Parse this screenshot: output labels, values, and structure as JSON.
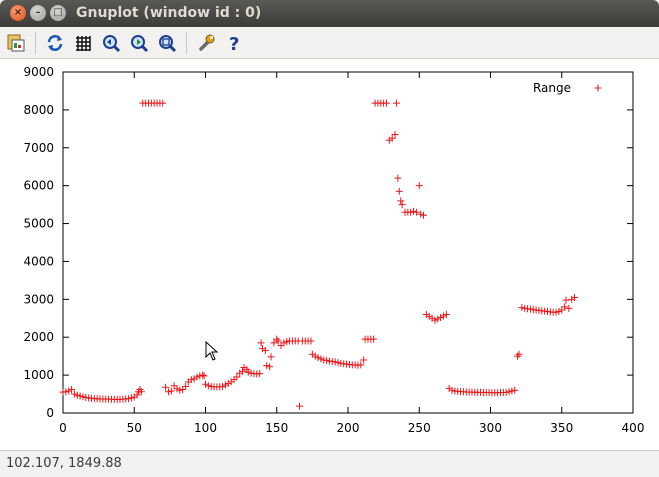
{
  "window": {
    "title": "Gnuplot (window id : 0)",
    "close_glyph": "×",
    "minimize_glyph": "–",
    "maximize_glyph": "□"
  },
  "toolbar": {
    "items": [
      {
        "name": "copy-to-clipboard-icon"
      },
      {
        "name": "replot-icon"
      },
      {
        "name": "grid-icon"
      },
      {
        "name": "zoom-previous-icon"
      },
      {
        "name": "zoom-next-icon"
      },
      {
        "name": "autoscale-icon"
      },
      {
        "name": "options-wrench-icon"
      },
      {
        "name": "help-icon"
      }
    ]
  },
  "status": {
    "coordinates": "102.107,  1849.88"
  },
  "colors": {
    "series": "#e41a1c",
    "titlebar": "#3c3b37",
    "close": "#df4a16"
  },
  "chart_data": {
    "type": "scatter",
    "title": "",
    "xlabel": "",
    "ylabel": "",
    "xlim": [
      0,
      400
    ],
    "ylim": [
      0,
      9000
    ],
    "xticks": [
      0,
      50,
      100,
      150,
      200,
      250,
      300,
      350,
      400
    ],
    "yticks": [
      0,
      1000,
      2000,
      3000,
      4000,
      5000,
      6000,
      7000,
      8000,
      9000
    ],
    "grid": false,
    "legend": "top-right",
    "series": [
      {
        "name": "Range",
        "marker": "+",
        "points": [
          [
            0,
            550
          ],
          [
            2,
            560
          ],
          [
            4,
            580
          ],
          [
            6,
            620
          ],
          [
            8,
            500
          ],
          [
            10,
            470
          ],
          [
            12,
            450
          ],
          [
            14,
            430
          ],
          [
            16,
            410
          ],
          [
            18,
            400
          ],
          [
            20,
            390
          ],
          [
            22,
            380
          ],
          [
            24,
            375
          ],
          [
            26,
            370
          ],
          [
            28,
            368
          ],
          [
            30,
            365
          ],
          [
            32,
            365
          ],
          [
            34,
            362
          ],
          [
            36,
            360
          ],
          [
            38,
            360
          ],
          [
            40,
            360
          ],
          [
            42,
            365
          ],
          [
            44,
            370
          ],
          [
            46,
            380
          ],
          [
            48,
            400
          ],
          [
            50,
            420
          ],
          [
            52,
            480
          ],
          [
            53,
            560
          ],
          [
            54,
            620
          ],
          [
            55,
            560
          ],
          [
            56,
            8180
          ],
          [
            58,
            8180
          ],
          [
            60,
            8180
          ],
          [
            62,
            8180
          ],
          [
            64,
            8180
          ],
          [
            66,
            8180
          ],
          [
            68,
            8180
          ],
          [
            70,
            8180
          ],
          [
            72,
            680
          ],
          [
            74,
            560
          ],
          [
            76,
            580
          ],
          [
            78,
            720
          ],
          [
            80,
            640
          ],
          [
            82,
            600
          ],
          [
            84,
            620
          ],
          [
            86,
            700
          ],
          [
            88,
            820
          ],
          [
            90,
            880
          ],
          [
            92,
            900
          ],
          [
            94,
            950
          ],
          [
            96,
            980
          ],
          [
            98,
            1000
          ],
          [
            99,
            980
          ],
          [
            100,
            760
          ],
          [
            102,
            720
          ],
          [
            104,
            700
          ],
          [
            106,
            690
          ],
          [
            108,
            690
          ],
          [
            110,
            690
          ],
          [
            112,
            700
          ],
          [
            114,
            740
          ],
          [
            116,
            780
          ],
          [
            118,
            820
          ],
          [
            120,
            880
          ],
          [
            122,
            950
          ],
          [
            124,
            1050
          ],
          [
            126,
            1100
          ],
          [
            127,
            1200
          ],
          [
            129,
            1150
          ],
          [
            130,
            1080
          ],
          [
            132,
            1050
          ],
          [
            134,
            1040
          ],
          [
            136,
            1030
          ],
          [
            138,
            1040
          ],
          [
            139,
            1850
          ],
          [
            140,
            1700
          ],
          [
            142,
            1650
          ],
          [
            143,
            1250
          ],
          [
            145,
            1220
          ],
          [
            146,
            1480
          ],
          [
            148,
            1850
          ],
          [
            150,
            1950
          ],
          [
            151,
            1900
          ],
          [
            153,
            1780
          ],
          [
            155,
            1850
          ],
          [
            157,
            1880
          ],
          [
            159,
            1900
          ],
          [
            161,
            1900
          ],
          [
            163,
            1900
          ],
          [
            165,
            1900
          ],
          [
            166,
            180
          ],
          [
            168,
            1900
          ],
          [
            170,
            1900
          ],
          [
            172,
            1900
          ],
          [
            174,
            1900
          ],
          [
            175,
            1550
          ],
          [
            177,
            1500
          ],
          [
            179,
            1460
          ],
          [
            181,
            1430
          ],
          [
            183,
            1400
          ],
          [
            185,
            1390
          ],
          [
            187,
            1370
          ],
          [
            189,
            1360
          ],
          [
            191,
            1350
          ],
          [
            193,
            1330
          ],
          [
            195,
            1310
          ],
          [
            197,
            1300
          ],
          [
            199,
            1290
          ],
          [
            201,
            1280
          ],
          [
            203,
            1270
          ],
          [
            205,
            1270
          ],
          [
            207,
            1260
          ],
          [
            209,
            1270
          ],
          [
            211,
            1400
          ],
          [
            212,
            1950
          ],
          [
            214,
            1950
          ],
          [
            216,
            1950
          ],
          [
            218,
            1950
          ],
          [
            219,
            8180
          ],
          [
            221,
            8180
          ],
          [
            223,
            8180
          ],
          [
            225,
            8180
          ],
          [
            227,
            8180
          ],
          [
            229,
            7200
          ],
          [
            231,
            7250
          ],
          [
            233,
            7350
          ],
          [
            234,
            8180
          ],
          [
            235,
            6200
          ],
          [
            236,
            5850
          ],
          [
            237,
            5600
          ],
          [
            238,
            5500
          ],
          [
            240,
            5300
          ],
          [
            242,
            5300
          ],
          [
            244,
            5300
          ],
          [
            246,
            5320
          ],
          [
            248,
            5300
          ],
          [
            250,
            6000
          ],
          [
            251,
            5250
          ],
          [
            253,
            5220
          ],
          [
            255,
            2600
          ],
          [
            257,
            2550
          ],
          [
            259,
            2500
          ],
          [
            261,
            2450
          ],
          [
            263,
            2480
          ],
          [
            265,
            2520
          ],
          [
            267,
            2560
          ],
          [
            269,
            2600
          ],
          [
            271,
            650
          ],
          [
            273,
            600
          ],
          [
            275,
            580
          ],
          [
            277,
            570
          ],
          [
            279,
            565
          ],
          [
            281,
            560
          ],
          [
            283,
            555
          ],
          [
            285,
            550
          ],
          [
            287,
            550
          ],
          [
            289,
            548
          ],
          [
            291,
            545
          ],
          [
            293,
            545
          ],
          [
            295,
            540
          ],
          [
            297,
            540
          ],
          [
            299,
            540
          ],
          [
            301,
            535
          ],
          [
            303,
            535
          ],
          [
            305,
            535
          ],
          [
            307,
            540
          ],
          [
            309,
            540
          ],
          [
            311,
            545
          ],
          [
            313,
            560
          ],
          [
            315,
            580
          ],
          [
            317,
            600
          ],
          [
            319,
            1500
          ],
          [
            320,
            1550
          ],
          [
            322,
            2780
          ],
          [
            324,
            2760
          ],
          [
            326,
            2750
          ],
          [
            328,
            2740
          ],
          [
            330,
            2730
          ],
          [
            332,
            2720
          ],
          [
            334,
            2710
          ],
          [
            336,
            2700
          ],
          [
            338,
            2690
          ],
          [
            340,
            2680
          ],
          [
            342,
            2670
          ],
          [
            344,
            2660
          ],
          [
            346,
            2660
          ],
          [
            348,
            2680
          ],
          [
            350,
            2720
          ],
          [
            352,
            2800
          ],
          [
            353,
            2980
          ],
          [
            355,
            2760
          ],
          [
            357,
            3000
          ],
          [
            359,
            3050
          ]
        ]
      }
    ]
  }
}
